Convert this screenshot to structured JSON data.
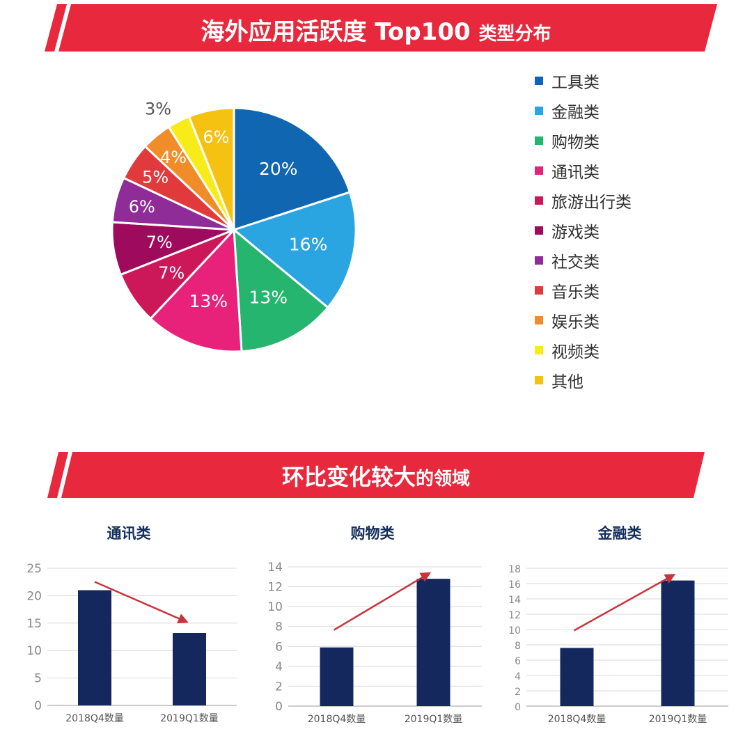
{
  "header": {
    "title_main": "海外应用活跃度 Top100",
    "title_small": "类型分布"
  },
  "section2": {
    "title_main": "环比变化较大",
    "title_small": "的领域"
  },
  "colors": {
    "banner_red": "#e8283c",
    "bar_navy": "#14285e",
    "arrow_red": "#c8343c"
  },
  "chart_data": [
    {
      "type": "pie",
      "title": "",
      "slices": [
        {
          "label": "工具类",
          "value": 20,
          "display": "20%",
          "color": "#1066b0"
        },
        {
          "label": "金融类",
          "value": 16,
          "display": "16%",
          "color": "#2aa5e2"
        },
        {
          "label": "购物类",
          "value": 13,
          "display": "13%",
          "color": "#25b56e"
        },
        {
          "label": "通讯类",
          "value": 13,
          "display": "13%",
          "color": "#e8227a"
        },
        {
          "label": "旅游出行类",
          "value": 7,
          "display": "7%",
          "color": "#cc1858"
        },
        {
          "label": "游戏类",
          "value": 7,
          "display": "7%",
          "color": "#9e0a5c"
        },
        {
          "label": "社交类",
          "value": 6,
          "display": "6%",
          "color": "#8f2c98"
        },
        {
          "label": "音乐类",
          "value": 5,
          "display": "5%",
          "color": "#e03a3c"
        },
        {
          "label": "娱乐类",
          "value": 4,
          "display": "4%",
          "color": "#f08c2a"
        },
        {
          "label": "视频类",
          "value": 3,
          "display": "3%",
          "color": "#f7ec1a"
        },
        {
          "label": "其他",
          "value": 6,
          "display": "6%",
          "color": "#f6c212"
        }
      ],
      "legend_position": "right"
    },
    {
      "type": "bar",
      "title": "通讯类",
      "categories": [
        "2018Q4数量",
        "2019Q1数量"
      ],
      "values": [
        21,
        13.2
      ],
      "ylim": [
        0,
        25
      ],
      "yticks": [
        0,
        5,
        10,
        15,
        20,
        25
      ],
      "trend": "down",
      "grid": true
    },
    {
      "type": "bar",
      "title": "购物类",
      "categories": [
        "2018Q4数量",
        "2019Q1数量"
      ],
      "values": [
        5.9,
        12.8
      ],
      "ylim": [
        0,
        14
      ],
      "yticks": [
        0,
        2,
        4,
        6,
        8,
        10,
        12,
        14
      ],
      "trend": "up",
      "grid": true
    },
    {
      "type": "bar",
      "title": "金融类",
      "categories": [
        "2018Q4数量",
        "2019Q1数量"
      ],
      "values": [
        7.6,
        16.4
      ],
      "ylim": [
        0,
        18
      ],
      "yticks": [
        0,
        2,
        4,
        6,
        8,
        10,
        12,
        14,
        16,
        18
      ],
      "trend": "up",
      "grid": true
    }
  ]
}
